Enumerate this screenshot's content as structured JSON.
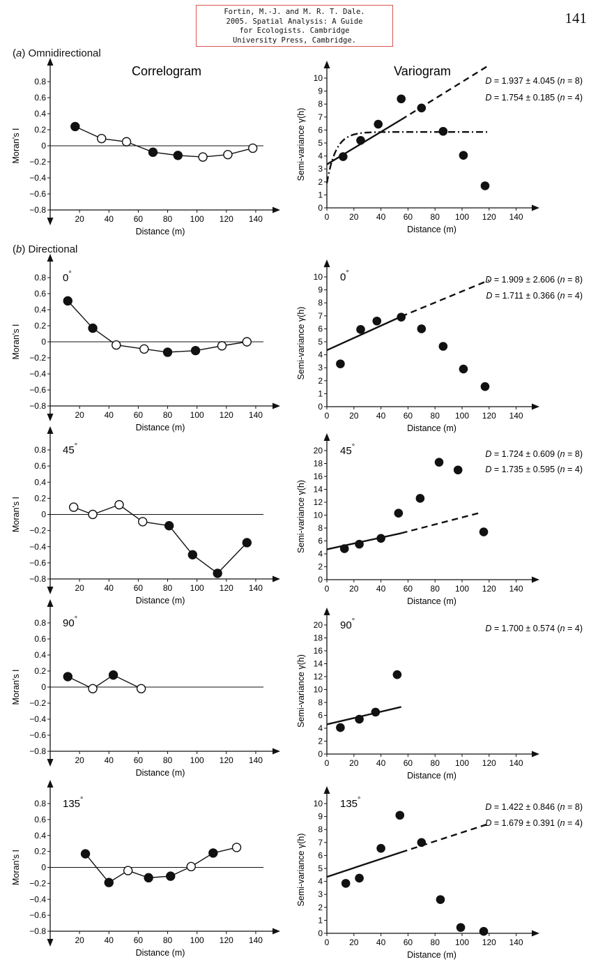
{
  "citation": [
    "Fortin, M.-J. and M. R. T. Dale.",
    "2005. Spatial Analysis:  A Guide",
    "for Ecologists. Cambridge",
    "University Press, Cambridge."
  ],
  "page_number": "141",
  "sections": {
    "a": {
      "paren_open": "(",
      "letter": "a",
      "paren_close": ")",
      "name": "Omnidirectional"
    },
    "b": {
      "paren_open": "(",
      "letter": "b",
      "paren_close": ")",
      "name": "Directional"
    }
  },
  "column_titles": {
    "left": "Correlogram",
    "right": "Variogram"
  },
  "colors": {
    "ink": "#111111",
    "citation_border": "#d9534f"
  },
  "chart_data": [
    {
      "type": "scatter",
      "panel": "omnidirectional-correlogram",
      "title": "Correlogram",
      "xlabel": "Distance (m)",
      "ylabel": "Moran's I",
      "xlim": [
        0,
        150
      ],
      "ylim": [
        -0.8,
        0.8
      ],
      "xticks": [
        "20",
        "40",
        "60",
        "80",
        "100",
        "120",
        "140"
      ],
      "yticks": [
        "0.8",
        "0.6",
        "0.4",
        "0.2",
        "0",
        "−0.2",
        "−0.4",
        "−0.6",
        "−0.8"
      ],
      "points": [
        {
          "x": 17,
          "y": 0.24,
          "filled": true
        },
        {
          "x": 35,
          "y": 0.09,
          "filled": false
        },
        {
          "x": 52,
          "y": 0.05,
          "filled": false
        },
        {
          "x": 70,
          "y": -0.08,
          "filled": true
        },
        {
          "x": 87,
          "y": -0.12,
          "filled": true
        },
        {
          "x": 104,
          "y": -0.14,
          "filled": false
        },
        {
          "x": 121,
          "y": -0.11,
          "filled": false
        },
        {
          "x": 138,
          "y": -0.03,
          "filled": false
        }
      ]
    },
    {
      "type": "scatter",
      "panel": "omnidirectional-variogram",
      "title": "Variogram",
      "xlabel": "Distance (m)",
      "ylabel": "Semi-variance γ(h)",
      "xlim": [
        0,
        150
      ],
      "ylim": [
        0,
        11
      ],
      "xticks": [
        "0",
        "20",
        "40",
        "60",
        "80",
        "100",
        "120",
        "140"
      ],
      "yticks": [
        "0",
        "1",
        "2",
        "3",
        "4",
        "5",
        "6",
        "7",
        "8",
        "9",
        "10"
      ],
      "points": [
        {
          "x": 12,
          "y": 3.95
        },
        {
          "x": 25,
          "y": 5.2
        },
        {
          "x": 38,
          "y": 6.45
        },
        {
          "x": 55,
          "y": 8.4
        },
        {
          "x": 70,
          "y": 7.7
        },
        {
          "x": 86,
          "y": 5.9
        },
        {
          "x": 101,
          "y": 4.05
        },
        {
          "x": 117,
          "y": 1.7
        }
      ],
      "fits": [
        {
          "style": "solid",
          "x": [
            0,
            55
          ],
          "y": [
            3.35,
            6.8
          ]
        },
        {
          "style": "dashed",
          "x": [
            55,
            120
          ],
          "y": [
            6.8,
            11.0
          ]
        }
      ],
      "model": {
        "style": "dash-dot",
        "sill": 5.85,
        "nugget": 1.9,
        "range": 20,
        "x": [
          0,
          120
        ]
      },
      "annotations": [
        {
          "D": "D",
          "rest": " = 1.937 ± 4.045 (",
          "n": "n",
          "tail": " = 8)"
        },
        {
          "D": "D",
          "rest": " = 1.754 ± 0.185 (",
          "n": "n",
          "tail": " = 4)"
        }
      ]
    },
    {
      "type": "scatter",
      "panel": "directional-0-correlogram",
      "direction": "0°",
      "xlabel": "Distance (m)",
      "ylabel": "Moran's I",
      "xlim": [
        0,
        150
      ],
      "ylim": [
        -0.8,
        0.8
      ],
      "xticks": [
        "20",
        "40",
        "60",
        "80",
        "100",
        "120",
        "140"
      ],
      "yticks": [
        "0.8",
        "0.6",
        "0.4",
        "0.2",
        "0",
        "−0.2",
        "−0.4",
        "−0.6",
        "−0.8"
      ],
      "points": [
        {
          "x": 12,
          "y": 0.51,
          "filled": true
        },
        {
          "x": 29,
          "y": 0.17,
          "filled": true
        },
        {
          "x": 45,
          "y": -0.04,
          "filled": false
        },
        {
          "x": 64,
          "y": -0.09,
          "filled": false
        },
        {
          "x": 80,
          "y": -0.13,
          "filled": true
        },
        {
          "x": 99,
          "y": -0.11,
          "filled": true
        },
        {
          "x": 117,
          "y": -0.05,
          "filled": false
        },
        {
          "x": 134,
          "y": 0.0,
          "filled": false
        }
      ]
    },
    {
      "type": "scatter",
      "panel": "directional-0-variogram",
      "direction": "0°",
      "xlabel": "Distance (m)",
      "ylabel": "Semi-variance γ(h)",
      "xlim": [
        0,
        150
      ],
      "ylim": [
        0,
        11
      ],
      "xticks": [
        "0",
        "20",
        "40",
        "60",
        "80",
        "100",
        "120",
        "140"
      ],
      "yticks": [
        "0",
        "1",
        "2",
        "3",
        "4",
        "5",
        "6",
        "7",
        "8",
        "9",
        "10"
      ],
      "points": [
        {
          "x": 10,
          "y": 3.3
        },
        {
          "x": 25,
          "y": 5.95
        },
        {
          "x": 37,
          "y": 6.6
        },
        {
          "x": 55,
          "y": 6.9
        },
        {
          "x": 70,
          "y": 6.0
        },
        {
          "x": 86,
          "y": 4.65
        },
        {
          "x": 101,
          "y": 2.9
        },
        {
          "x": 117,
          "y": 1.55
        }
      ],
      "fits": [
        {
          "style": "solid",
          "x": [
            0,
            55
          ],
          "y": [
            4.35,
            6.95
          ]
        },
        {
          "style": "dashed",
          "x": [
            55,
            120
          ],
          "y": [
            6.95,
            9.75
          ]
        }
      ],
      "annotations": [
        {
          "D": "D",
          "rest": " = 1.909 ± 2.606 (",
          "n": "n",
          "tail": " = 8)"
        },
        {
          "D": "D",
          "rest": " = 1.711 ± 0.366 (",
          "n": "n",
          "tail": " = 4)"
        }
      ]
    },
    {
      "type": "scatter",
      "panel": "directional-45-correlogram",
      "direction": "45°",
      "xlabel": "Distance (m)",
      "ylabel": "Moran's I",
      "xlim": [
        0,
        150
      ],
      "ylim": [
        -0.8,
        0.8
      ],
      "xticks": [
        "20",
        "40",
        "60",
        "80",
        "100",
        "120",
        "140"
      ],
      "yticks": [
        "0.8",
        "0.6",
        "0.4",
        "0.2",
        "0",
        "−0.2",
        "−0.4",
        "−0.6",
        "−0.8"
      ],
      "points": [
        {
          "x": 16,
          "y": 0.09,
          "filled": false
        },
        {
          "x": 29,
          "y": 0.0,
          "filled": false
        },
        {
          "x": 47,
          "y": 0.12,
          "filled": false
        },
        {
          "x": 63,
          "y": -0.09,
          "filled": false
        },
        {
          "x": 81,
          "y": -0.14,
          "filled": true
        },
        {
          "x": 97,
          "y": -0.5,
          "filled": true
        },
        {
          "x": 114,
          "y": -0.73,
          "filled": true
        },
        {
          "x": 134,
          "y": -0.35,
          "filled": true
        }
      ]
    },
    {
      "type": "scatter",
      "panel": "directional-45-variogram",
      "direction": "45°",
      "xlabel": "Distance (m)",
      "ylabel": "Semi-variance γ(h)",
      "xlim": [
        0,
        150
      ],
      "ylim": [
        0,
        22
      ],
      "xticks": [
        "0",
        "20",
        "40",
        "60",
        "80",
        "100",
        "120",
        "140"
      ],
      "yticks": [
        "0",
        "2",
        "4",
        "6",
        "8",
        "10",
        "12",
        "14",
        "16",
        "18",
        "20"
      ],
      "points": [
        {
          "x": 13,
          "y": 4.8
        },
        {
          "x": 24,
          "y": 5.5
        },
        {
          "x": 40,
          "y": 6.4
        },
        {
          "x": 53,
          "y": 10.3
        },
        {
          "x": 69,
          "y": 12.6
        },
        {
          "x": 83,
          "y": 18.2
        },
        {
          "x": 97,
          "y": 17.0
        },
        {
          "x": 116,
          "y": 7.4
        }
      ],
      "fits": [
        {
          "style": "solid",
          "x": [
            0,
            55
          ],
          "y": [
            4.7,
            7.2
          ]
        },
        {
          "style": "dashed",
          "x": [
            55,
            112
          ],
          "y": [
            7.2,
            10.3
          ]
        }
      ],
      "annotations": [
        {
          "D": "D",
          "rest": " = 1.724 ± 0.609 (",
          "n": "n",
          "tail": " = 8)"
        },
        {
          "D": "D",
          "rest": " = 1.735 ± 0.595 (",
          "n": "n",
          "tail": " = 4)"
        }
      ]
    },
    {
      "type": "scatter",
      "panel": "directional-90-correlogram",
      "direction": "90°",
      "xlabel": "Distance (m)",
      "ylabel": "Moran's I",
      "xlim": [
        0,
        150
      ],
      "ylim": [
        -0.8,
        0.8
      ],
      "xticks": [
        "20",
        "40",
        "60",
        "80",
        "100",
        "120",
        "140"
      ],
      "yticks": [
        "0.8",
        "0.6",
        "0.4",
        "0.2",
        "0",
        "−0.2",
        "−0.4",
        "−0.6",
        "−0.8"
      ],
      "points": [
        {
          "x": 12,
          "y": 0.13,
          "filled": true
        },
        {
          "x": 29,
          "y": -0.02,
          "filled": false
        },
        {
          "x": 43,
          "y": 0.15,
          "filled": true
        },
        {
          "x": 62,
          "y": -0.02,
          "filled": false
        }
      ]
    },
    {
      "type": "scatter",
      "panel": "directional-90-variogram",
      "direction": "90°",
      "xlabel": "Distance (m)",
      "ylabel": "Semi-variance γ(h)",
      "xlim": [
        0,
        150
      ],
      "ylim": [
        0,
        22
      ],
      "xticks": [
        "0",
        "20",
        "40",
        "60",
        "80",
        "100",
        "120",
        "140"
      ],
      "yticks": [
        "0",
        "2",
        "4",
        "6",
        "8",
        "10",
        "12",
        "14",
        "16",
        "18",
        "20"
      ],
      "points": [
        {
          "x": 10,
          "y": 4.1
        },
        {
          "x": 24,
          "y": 5.4
        },
        {
          "x": 36,
          "y": 6.5
        },
        {
          "x": 52,
          "y": 12.3
        }
      ],
      "fits": [
        {
          "style": "solid",
          "x": [
            0,
            55
          ],
          "y": [
            4.6,
            7.3
          ]
        }
      ],
      "annotations": [
        {
          "D": "D",
          "rest": " = 1.700 ± 0.574 (",
          "n": "n",
          "tail": " = 4)"
        }
      ]
    },
    {
      "type": "scatter",
      "panel": "directional-135-correlogram",
      "direction": "135°",
      "xlabel": "Distance (m)",
      "ylabel": "Moran's I",
      "xlim": [
        0,
        150
      ],
      "ylim": [
        -0.8,
        0.8
      ],
      "xticks": [
        "20",
        "40",
        "60",
        "80",
        "100",
        "120",
        "140"
      ],
      "yticks": [
        "0.8",
        "0.6",
        "0.4",
        "0.2",
        "0",
        "−0.2",
        "−0.4",
        "−0.6",
        "−0.8"
      ],
      "points": [
        {
          "x": 24,
          "y": 0.17,
          "filled": true
        },
        {
          "x": 40,
          "y": -0.19,
          "filled": true
        },
        {
          "x": 53,
          "y": -0.04,
          "filled": false
        },
        {
          "x": 67,
          "y": -0.13,
          "filled": true
        },
        {
          "x": 82,
          "y": -0.11,
          "filled": true
        },
        {
          "x": 96,
          "y": 0.01,
          "filled": false
        },
        {
          "x": 111,
          "y": 0.18,
          "filled": true
        },
        {
          "x": 127,
          "y": 0.25,
          "filled": false
        }
      ]
    },
    {
      "type": "scatter",
      "panel": "directional-135-variogram",
      "direction": "135°",
      "xlabel": "Distance (m)",
      "ylabel": "Semi-variance γ(h)",
      "xlim": [
        0,
        150
      ],
      "ylim": [
        0,
        11
      ],
      "xticks": [
        "0",
        "20",
        "40",
        "60",
        "80",
        "100",
        "120",
        "140"
      ],
      "yticks": [
        "0",
        "1",
        "2",
        "3",
        "4",
        "5",
        "6",
        "7",
        "8",
        "9",
        "10"
      ],
      "points": [
        {
          "x": 14,
          "y": 3.85
        },
        {
          "x": 24,
          "y": 4.25
        },
        {
          "x": 40,
          "y": 6.55
        },
        {
          "x": 54,
          "y": 9.1
        },
        {
          "x": 70,
          "y": 7.0
        },
        {
          "x": 84,
          "y": 2.6
        },
        {
          "x": 99,
          "y": 0.45
        },
        {
          "x": 116,
          "y": 0.15
        }
      ],
      "fits": [
        {
          "style": "solid",
          "x": [
            0,
            55
          ],
          "y": [
            4.35,
            6.25
          ]
        },
        {
          "style": "dashed",
          "x": [
            55,
            120
          ],
          "y": [
            6.25,
            8.45
          ]
        }
      ],
      "annotations": [
        {
          "D": "D",
          "rest": " = 1.422 ± 0.846 (",
          "n": "n",
          "tail": " = 8)"
        },
        {
          "D": "D",
          "rest": " = 1.679 ± 0.391 (",
          "n": "n",
          "tail": " = 4)"
        }
      ]
    }
  ]
}
